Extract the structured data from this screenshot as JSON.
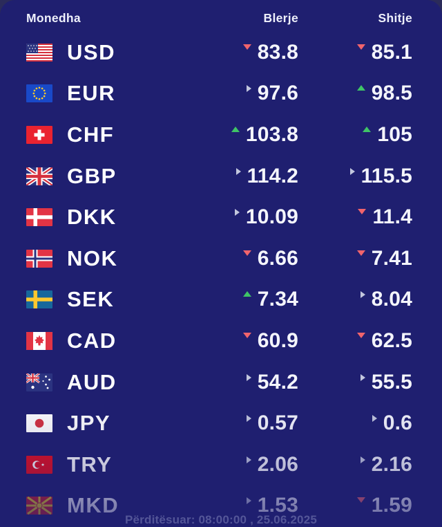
{
  "header": {
    "currency": "Monedha",
    "buy": "Blerje",
    "sell": "Shitje"
  },
  "rows": [
    {
      "code": "USD",
      "flag": "us",
      "buy": {
        "value": "83.8",
        "trend": "down"
      },
      "sell": {
        "value": "85.1",
        "trend": "down"
      }
    },
    {
      "code": "EUR",
      "flag": "eu",
      "buy": {
        "value": "97.6",
        "trend": "flat"
      },
      "sell": {
        "value": "98.5",
        "trend": "up"
      }
    },
    {
      "code": "CHF",
      "flag": "ch",
      "buy": {
        "value": "103.8",
        "trend": "up"
      },
      "sell": {
        "value": "105",
        "trend": "up"
      }
    },
    {
      "code": "GBP",
      "flag": "gb",
      "buy": {
        "value": "114.2",
        "trend": "flat"
      },
      "sell": {
        "value": "115.5",
        "trend": "flat"
      }
    },
    {
      "code": "DKK",
      "flag": "dk",
      "buy": {
        "value": "10.09",
        "trend": "flat"
      },
      "sell": {
        "value": "11.4",
        "trend": "down"
      }
    },
    {
      "code": "NOK",
      "flag": "no",
      "buy": {
        "value": "6.66",
        "trend": "down"
      },
      "sell": {
        "value": "7.41",
        "trend": "down"
      }
    },
    {
      "code": "SEK",
      "flag": "se",
      "buy": {
        "value": "7.34",
        "trend": "up"
      },
      "sell": {
        "value": "8.04",
        "trend": "flat"
      }
    },
    {
      "code": "CAD",
      "flag": "ca",
      "buy": {
        "value": "60.9",
        "trend": "down"
      },
      "sell": {
        "value": "62.5",
        "trend": "down"
      }
    },
    {
      "code": "AUD",
      "flag": "au",
      "buy": {
        "value": "54.2",
        "trend": "flat"
      },
      "sell": {
        "value": "55.5",
        "trend": "flat"
      }
    },
    {
      "code": "JPY",
      "flag": "jp",
      "buy": {
        "value": "0.57",
        "trend": "flat"
      },
      "sell": {
        "value": "0.6",
        "trend": "flat"
      }
    },
    {
      "code": "TRY",
      "flag": "tr",
      "buy": {
        "value": "2.06",
        "trend": "flat"
      },
      "sell": {
        "value": "2.16",
        "trend": "flat"
      }
    },
    {
      "code": "MKD",
      "flag": "mk",
      "buy": {
        "value": "1.53",
        "trend": "flat"
      },
      "sell": {
        "value": "1.59",
        "trend": "down"
      }
    }
  ],
  "footer": {
    "updated": "Përditësuar: 08:00:00 , 25.06.2025"
  },
  "colors": {
    "page_bg": "#2b2b5a",
    "card_bg": "#1f1f70",
    "up": "#3fc466",
    "down": "#f1646c",
    "flat": "#c3c7de"
  }
}
